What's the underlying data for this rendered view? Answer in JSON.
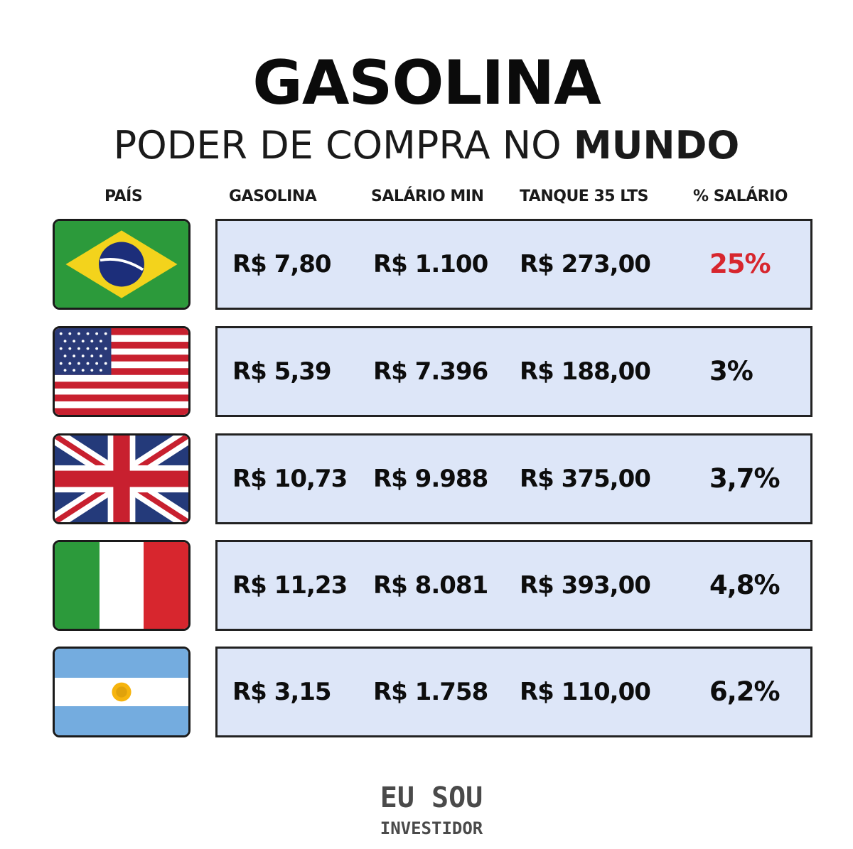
{
  "title_line1": "GASOLINA",
  "title_line2_regular": "PODER DE COMPRA NO ",
  "title_line2_bold": "MUNDO",
  "columns": {
    "pais": "PAÍS",
    "gasolina": "GASOLINA",
    "salario_min": "SALÁRIO MIN",
    "tanque": "TANQUE 35 LTS",
    "pct_salario": "% SALÁRIO"
  },
  "rows": [
    {
      "flag": "brazil-flag",
      "gasolina": "R$ 7,80",
      "salario_min": "R$ 1.100",
      "tanque": "R$ 273,00",
      "pct_salario": "25%",
      "pct_color": "#d7262e"
    },
    {
      "flag": "usa-flag",
      "gasolina": "R$ 5,39",
      "salario_min": "R$ 7.396",
      "tanque": "R$ 188,00",
      "pct_salario": "3%",
      "pct_color": "#0d0d0d"
    },
    {
      "flag": "uk-flag",
      "gasolina": "R$ 10,73",
      "salario_min": "R$ 9.988",
      "tanque": "R$ 375,00",
      "pct_salario": "3,7%",
      "pct_color": "#0d0d0d"
    },
    {
      "flag": "italy-flag",
      "gasolina": "R$ 11,23",
      "salario_min": "R$ 8.081",
      "tanque": "R$ 393,00",
      "pct_salario": "4,8%",
      "pct_color": "#0d0d0d"
    },
    {
      "flag": "argentina-flag",
      "gasolina": "R$ 3,15",
      "salario_min": "R$ 1.758",
      "tanque": "R$ 110,00",
      "pct_salario": "6,2%",
      "pct_color": "#0d0d0d"
    }
  ],
  "colors": {
    "row_background": "#dde6f8",
    "highlight": "#d7262e"
  },
  "logo": {
    "line1": "EU SOU",
    "line2": "INVESTIDOR"
  }
}
